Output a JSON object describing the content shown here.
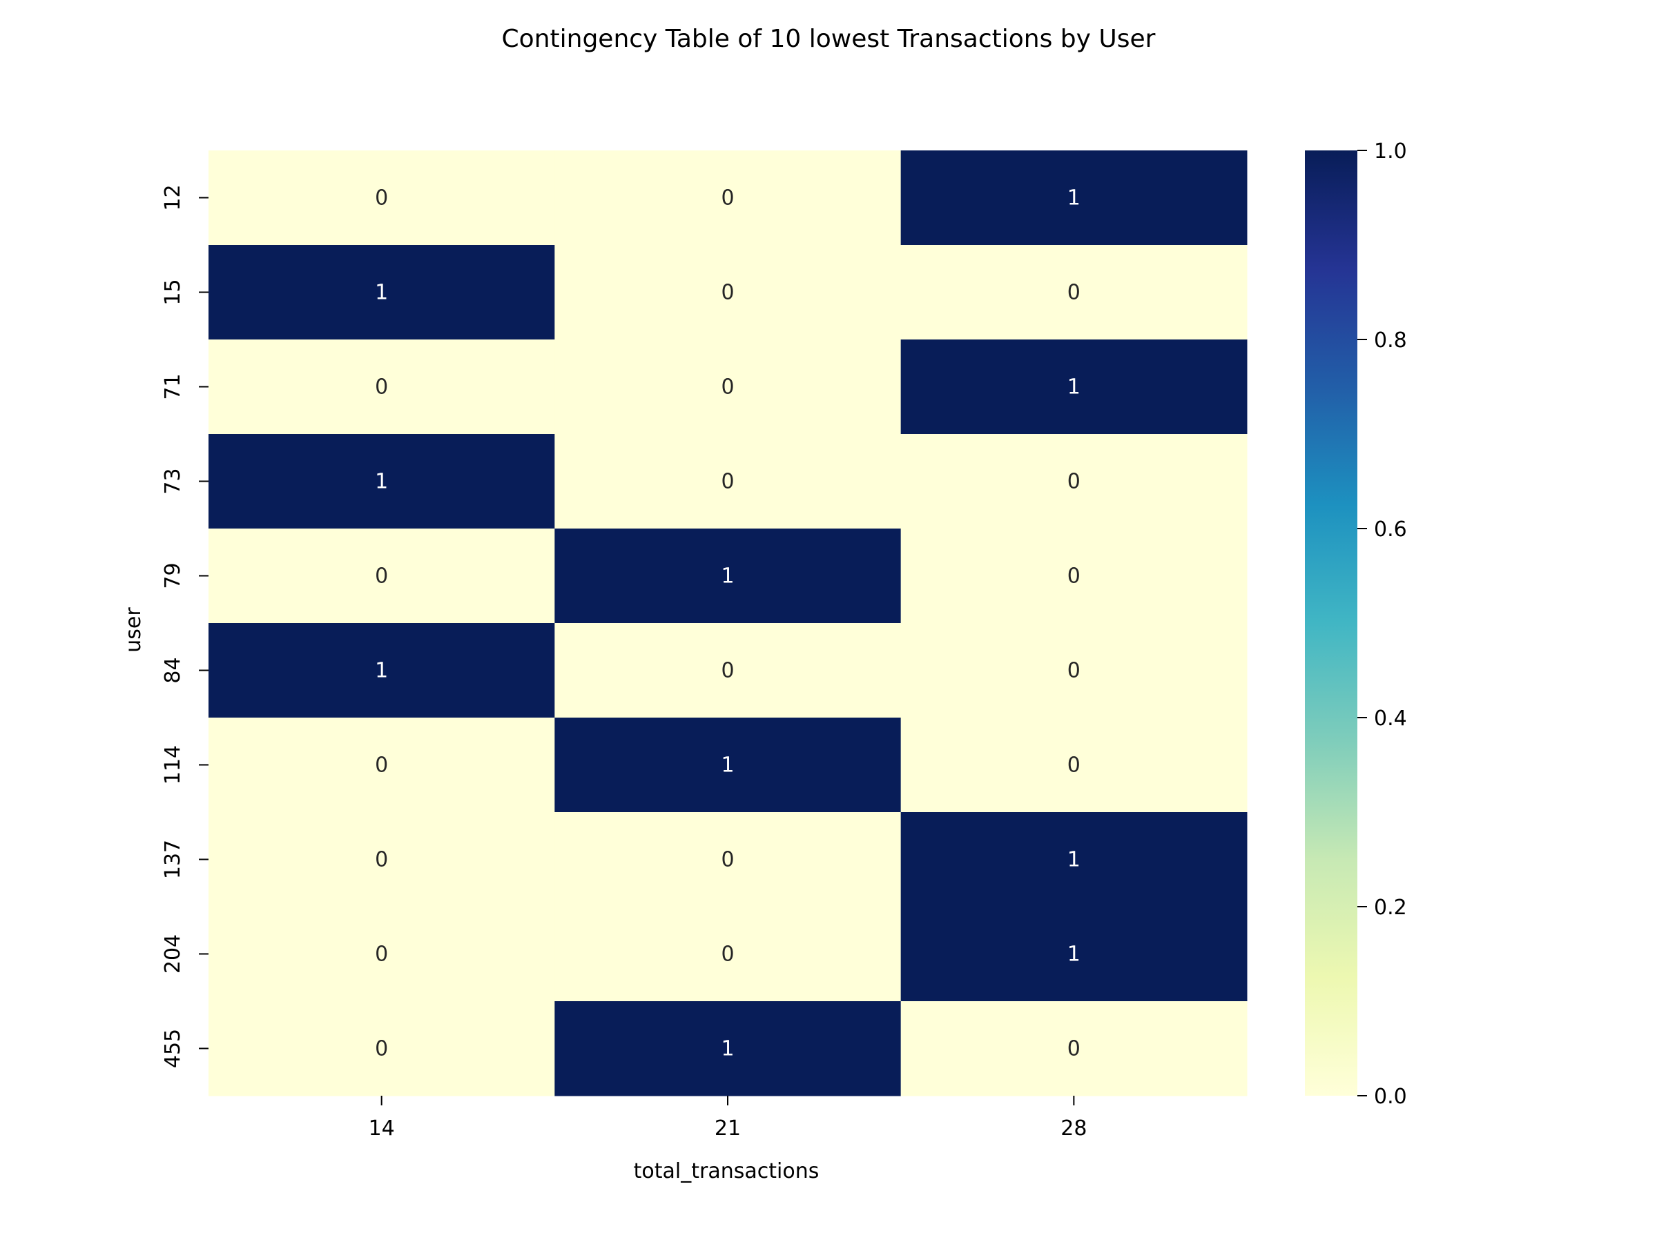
{
  "chart_data": {
    "type": "heatmap",
    "title": "Contingency Table of 10 lowest Transactions by User",
    "xlabel": "total_transactions",
    "ylabel": "user",
    "x_categories": [
      "14",
      "21",
      "28"
    ],
    "y_categories": [
      "12",
      "15",
      "71",
      "73",
      "79",
      "84",
      "114",
      "137",
      "204",
      "455"
    ],
    "values": [
      [
        0,
        0,
        1
      ],
      [
        1,
        0,
        0
      ],
      [
        0,
        0,
        1
      ],
      [
        1,
        0,
        0
      ],
      [
        0,
        1,
        0
      ],
      [
        1,
        0,
        0
      ],
      [
        0,
        1,
        0
      ],
      [
        0,
        0,
        1
      ],
      [
        0,
        0,
        1
      ],
      [
        0,
        1,
        0
      ]
    ],
    "colormap": "YlGnBu",
    "colorbar": {
      "range": [
        0.0,
        1.0
      ],
      "ticks": [
        0.0,
        0.2,
        0.4,
        0.6,
        0.8,
        1.0
      ],
      "tick_labels": [
        "0.0",
        "0.2",
        "0.4",
        "0.6",
        "0.8",
        "1.0"
      ]
    },
    "annotations": true,
    "colors": {
      "low": "#ffffd9",
      "high": "#081d58",
      "text_on_light": "#262626",
      "text_on_dark": "#ffffff"
    }
  }
}
